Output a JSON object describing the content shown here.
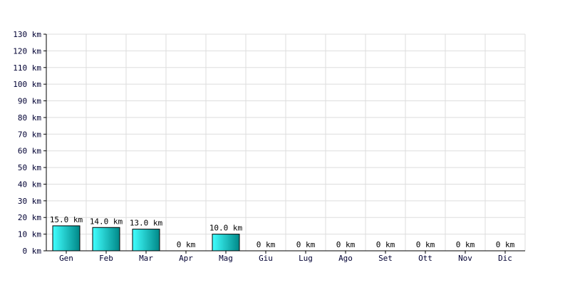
{
  "chart_data": {
    "type": "bar",
    "categories": [
      "Gen",
      "Feb",
      "Mar",
      "Apr",
      "Mag",
      "Giu",
      "Lug",
      "Ago",
      "Set",
      "Ott",
      "Nov",
      "Dic"
    ],
    "values": [
      15.0,
      14.0,
      13.0,
      0,
      10.0,
      0,
      0,
      0,
      0,
      0,
      0,
      0
    ],
    "data_labels": [
      "15.0 km",
      "14.0 km",
      "13.0 km",
      "0 km",
      "10.0 km",
      "0 km",
      "0 km",
      "0 km",
      "0 km",
      "0 km",
      "0 km",
      "0 km"
    ],
    "yticks": [
      0,
      10,
      20,
      30,
      40,
      50,
      60,
      70,
      80,
      90,
      100,
      110,
      120,
      130
    ],
    "ytick_labels": [
      "0 km",
      "10 km",
      "20 km",
      "30 km",
      "40 km",
      "50 km",
      "60 km",
      "70 km",
      "80 km",
      "90 km",
      "100 km",
      "110 km",
      "120 km",
      "130 km"
    ],
    "ylim": [
      0,
      130
    ],
    "grid": true,
    "colors": {
      "bar_light": "#40ffff",
      "bar_dark": "#008888",
      "grid": "#dddddd",
      "axis": "#000000",
      "tick_text": "#000033"
    }
  }
}
